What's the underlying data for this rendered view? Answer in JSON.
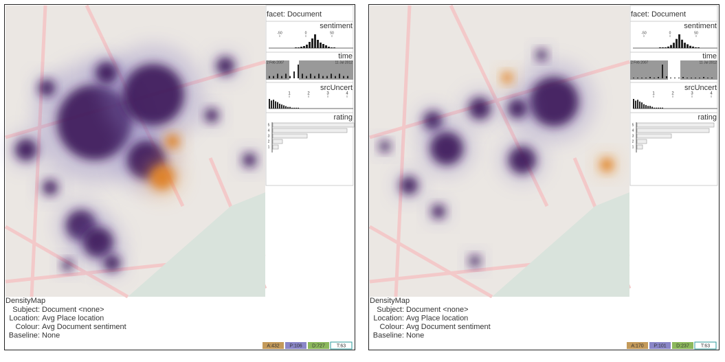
{
  "panels": [
    {
      "facet": "facet: Document",
      "sentiment": {
        "title": "sentiment",
        "ticks": [
          -50,
          0,
          50
        ],
        "counts": [
          1,
          1,
          2,
          3,
          5,
          9,
          14,
          20,
          12,
          8,
          6,
          4,
          2,
          1,
          1
        ]
      },
      "time": {
        "title": "time",
        "start": "2 Feb 2007",
        "end": "11 Jul 2012",
        "counts": [
          1,
          1,
          2,
          1,
          2,
          1,
          3,
          6,
          2,
          1,
          2,
          1,
          2,
          1,
          1,
          2,
          1,
          2,
          1,
          1
        ]
      },
      "srcUncert": {
        "title": "srcUncert",
        "ticks": [
          1,
          2,
          3,
          4
        ],
        "counts": [
          12,
          10,
          11,
          9,
          8,
          6,
          5,
          4,
          3,
          2,
          2,
          1,
          1,
          1,
          1
        ]
      },
      "rating": {
        "title": "rating",
        "levels": [
          5,
          4,
          3,
          2,
          1
        ],
        "counts": [
          118,
          108,
          50,
          14,
          8
        ]
      },
      "footer": {
        "title": "DensityMap",
        "rows": [
          [
            "Subject:",
            "Document <none>"
          ],
          [
            "Location:",
            "Avg Place location"
          ],
          [
            "Colour:",
            "Avg Document sentiment"
          ],
          [
            "Baseline:",
            "None"
          ]
        ]
      },
      "badges": [
        "A:432",
        "P:106",
        "D:727",
        "T:63"
      ]
    },
    {
      "facet": "facet: Document",
      "sentiment": {
        "title": "sentiment",
        "ticks": [
          -50,
          0,
          50
        ],
        "counts": [
          1,
          1,
          1,
          2,
          4,
          7,
          12,
          18,
          11,
          7,
          5,
          3,
          2,
          1,
          1
        ]
      },
      "time": {
        "title": "time",
        "start": "2 Feb 2007",
        "end": "11 Jul 2012",
        "counts": [
          1,
          1,
          1,
          1,
          2,
          1,
          2,
          20,
          3,
          1,
          1,
          1,
          2,
          1,
          1,
          1,
          1,
          2,
          1,
          1
        ]
      },
      "srcUncert": {
        "title": "srcUncert",
        "ticks": [
          1,
          2,
          3,
          4
        ],
        "counts": [
          11,
          9,
          10,
          8,
          7,
          5,
          4,
          3,
          3,
          2,
          1,
          1,
          1,
          1,
          1
        ]
      },
      "rating": {
        "title": "rating",
        "levels": [
          5,
          4,
          3,
          2,
          1
        ],
        "counts": [
          112,
          105,
          50,
          14,
          8
        ]
      },
      "footer": {
        "title": "DensityMap",
        "rows": [
          [
            "Subject:",
            "Document <none>"
          ],
          [
            "Location:",
            "Avg Place location"
          ],
          [
            "Colour:",
            "Avg Document sentiment"
          ],
          [
            "Baseline:",
            "None"
          ]
        ]
      },
      "badges": [
        "A:170",
        "P:101",
        "D:237",
        "T:63"
      ]
    }
  ]
}
